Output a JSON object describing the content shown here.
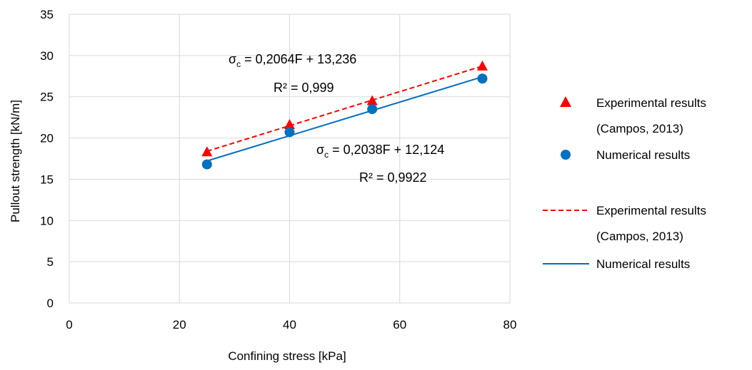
{
  "chart_data": {
    "type": "scatter",
    "xlabel": "Confining stress [kPa]",
    "ylabel": "Pullout strength [kN/m]",
    "xlim": [
      0,
      80
    ],
    "ylim": [
      0,
      35
    ],
    "xticks": [
      0,
      20,
      40,
      60,
      80
    ],
    "yticks": [
      0,
      5,
      10,
      15,
      20,
      25,
      30,
      35
    ],
    "grid": true,
    "legend_position": "right",
    "series": [
      {
        "name": "Experimental results (Campos, 2013)",
        "marker": "triangle",
        "color": "#ff0000",
        "x": [
          25,
          40,
          55,
          75
        ],
        "y": [
          18.3,
          21.6,
          24.5,
          28.7
        ]
      },
      {
        "name": "Numerical results",
        "marker": "circle",
        "color": "#0070c0",
        "x": [
          25,
          40,
          55,
          75
        ],
        "y": [
          16.8,
          20.7,
          23.5,
          27.2
        ]
      }
    ],
    "trendlines": [
      {
        "name": "Experimental results (Campos, 2013)",
        "style": "dashed",
        "color": "#ff0000",
        "slope": 0.2064,
        "intercept": 13.236,
        "x_range": [
          25,
          75
        ],
        "equation_prefix": "σ",
        "equation_subscript": "c",
        "equation_rest": " = 0,2064F + 13,236",
        "r2_label": "R² = 0,999"
      },
      {
        "name": "Numerical results",
        "style": "solid",
        "color": "#0070c0",
        "slope": 0.2038,
        "intercept": 12.124,
        "x_range": [
          25,
          75
        ],
        "equation_prefix": "σ",
        "equation_subscript": "c",
        "equation_rest": " = 0,2038F + 12,124",
        "r2_label": "R² = 0,9922"
      }
    ],
    "legend": {
      "marker_entries": [
        {
          "line1": "Experimental results",
          "line2": "(Campos, 2013)",
          "marker": "triangle",
          "color": "#ff0000"
        },
        {
          "line1": "Numerical results",
          "marker": "circle",
          "color": "#0070c0"
        }
      ],
      "line_entries": [
        {
          "line1": "Experimental results",
          "line2": "(Campos, 2013)",
          "style": "dashed",
          "color": "#ff0000"
        },
        {
          "line1": "Numerical results",
          "style": "solid",
          "color": "#0070c0"
        }
      ]
    }
  }
}
